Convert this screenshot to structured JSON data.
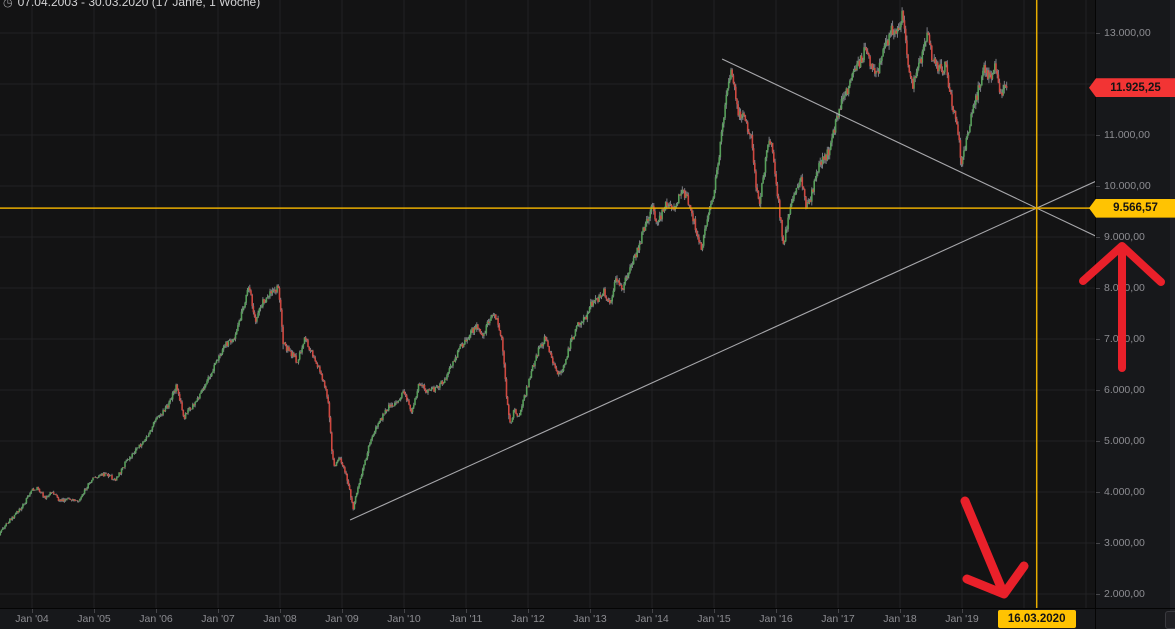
{
  "header": {
    "range_text": "07.04.2003 - 30.03.2020  (17 Jahre, 1 Woche)",
    "clock_icon": "◷"
  },
  "price_scale": {
    "labels": [
      {
        "value": 13000,
        "text": "13.000,00"
      },
      {
        "value": 12000,
        "text": "12.000,00"
      },
      {
        "value": 11000,
        "text": "11.000,00"
      },
      {
        "value": 10000,
        "text": "10.000,00"
      },
      {
        "value": 9000,
        "text": "9.000,00"
      },
      {
        "value": 8000,
        "text": "8.000,00"
      },
      {
        "value": 7000,
        "text": "7.000,00"
      },
      {
        "value": 6000,
        "text": "6.000,00"
      },
      {
        "value": 5000,
        "text": "5.000,00"
      },
      {
        "value": 4000,
        "text": "4.000,00"
      },
      {
        "value": 3000,
        "text": "3.000,00"
      },
      {
        "value": 2000,
        "text": "2.000,00"
      }
    ]
  },
  "time_scale": {
    "labels": [
      {
        "year": 2004,
        "text": "Jan '04"
      },
      {
        "year": 2005,
        "text": "Jan '05"
      },
      {
        "year": 2006,
        "text": "Jan '06"
      },
      {
        "year": 2007,
        "text": "Jan '07"
      },
      {
        "year": 2008,
        "text": "Jan '08"
      },
      {
        "year": 2009,
        "text": "Jan '09"
      },
      {
        "year": 2010,
        "text": "Jan '10"
      },
      {
        "year": 2011,
        "text": "Jan '11"
      },
      {
        "year": 2012,
        "text": "Jan '12"
      },
      {
        "year": 2013,
        "text": "Jan '13"
      },
      {
        "year": 2014,
        "text": "Jan '14"
      },
      {
        "year": 2015,
        "text": "Jan '15"
      },
      {
        "year": 2016,
        "text": "Jan '16"
      },
      {
        "year": 2017,
        "text": "Jan '17"
      },
      {
        "year": 2018,
        "text": "Jan '18"
      },
      {
        "year": 2019,
        "text": "Jan '19"
      }
    ],
    "gridline_years": [
      2004,
      2005,
      2006,
      2007,
      2008,
      2009,
      2010,
      2011,
      2012,
      2013,
      2014,
      2015,
      2016,
      2017,
      2018,
      2019,
      2020,
      2021
    ]
  },
  "last_price": {
    "label": "11.925,25",
    "value": 11925.25
  },
  "crosshair": {
    "price": 9566.57,
    "price_label": "9.566,57",
    "date_label": "16.03.2020",
    "year_frac": 2020.205
  },
  "chart_data": {
    "type": "candlestick",
    "interval": "1 Woche",
    "title": "07.04.2003 - 30.03.2020 (17 Jahre, 1 Woche)",
    "visible_range": {
      "start": "07.04.2003",
      "end": "30.03.2020"
    },
    "ylim": [
      1725,
      13650
    ],
    "xlim_years": [
      2003.45,
      2021.15
    ],
    "grid": true,
    "y_ticks": [
      2000,
      3000,
      4000,
      5000,
      6000,
      7000,
      8000,
      9000,
      10000,
      11000,
      12000,
      13000
    ],
    "last_close": 11925.25,
    "series_keypoints": [
      [
        2003.45,
        3130
      ],
      [
        2003.55,
        3320
      ],
      [
        2003.7,
        3520
      ],
      [
        2003.85,
        3720
      ],
      [
        2004.0,
        4030
      ],
      [
        2004.1,
        4080
      ],
      [
        2004.22,
        3870
      ],
      [
        2004.32,
        4000
      ],
      [
        2004.45,
        3830
      ],
      [
        2004.6,
        3890
      ],
      [
        2004.75,
        3810
      ],
      [
        2004.9,
        4130
      ],
      [
        2005.0,
        4270
      ],
      [
        2005.2,
        4360
      ],
      [
        2005.35,
        4230
      ],
      [
        2005.5,
        4560
      ],
      [
        2005.7,
        4870
      ],
      [
        2005.85,
        5080
      ],
      [
        2006.0,
        5410
      ],
      [
        2006.2,
        5720
      ],
      [
        2006.33,
        6090
      ],
      [
        2006.45,
        5470
      ],
      [
        2006.58,
        5680
      ],
      [
        2006.72,
        5900
      ],
      [
        2006.88,
        6320
      ],
      [
        2007.0,
        6610
      ],
      [
        2007.12,
        6880
      ],
      [
        2007.25,
        7010
      ],
      [
        2007.38,
        7480
      ],
      [
        2007.5,
        8050
      ],
      [
        2007.6,
        7350
      ],
      [
        2007.72,
        7720
      ],
      [
        2007.85,
        7890
      ],
      [
        2007.98,
        8020
      ],
      [
        2008.05,
        6890
      ],
      [
        2008.15,
        6780
      ],
      [
        2008.28,
        6560
      ],
      [
        2008.4,
        7040
      ],
      [
        2008.52,
        6720
      ],
      [
        2008.62,
        6430
      ],
      [
        2008.72,
        6080
      ],
      [
        2008.78,
        5780
      ],
      [
        2008.83,
        4870
      ],
      [
        2008.88,
        4450
      ],
      [
        2008.95,
        4680
      ],
      [
        2009.02,
        4520
      ],
      [
        2009.1,
        4180
      ],
      [
        2009.18,
        3690
      ],
      [
        2009.3,
        4290
      ],
      [
        2009.45,
        4960
      ],
      [
        2009.6,
        5380
      ],
      [
        2009.75,
        5670
      ],
      [
        2009.9,
        5780
      ],
      [
        2010.0,
        5960
      ],
      [
        2010.12,
        5580
      ],
      [
        2010.25,
        6140
      ],
      [
        2010.38,
        5970
      ],
      [
        2010.5,
        6020
      ],
      [
        2010.65,
        6180
      ],
      [
        2010.8,
        6580
      ],
      [
        2010.95,
        6900
      ],
      [
        2011.08,
        7140
      ],
      [
        2011.18,
        7230
      ],
      [
        2011.28,
        7060
      ],
      [
        2011.4,
        7480
      ],
      [
        2011.5,
        7380
      ],
      [
        2011.58,
        7000
      ],
      [
        2011.65,
        5940
      ],
      [
        2011.72,
        5280
      ],
      [
        2011.78,
        5630
      ],
      [
        2011.85,
        5470
      ],
      [
        2011.95,
        5890
      ],
      [
        2012.05,
        6340
      ],
      [
        2012.18,
        6820
      ],
      [
        2012.28,
        7020
      ],
      [
        2012.38,
        6590
      ],
      [
        2012.48,
        6270
      ],
      [
        2012.58,
        6450
      ],
      [
        2012.68,
        6920
      ],
      [
        2012.8,
        7260
      ],
      [
        2012.92,
        7400
      ],
      [
        2013.02,
        7710
      ],
      [
        2013.12,
        7780
      ],
      [
        2013.22,
        7940
      ],
      [
        2013.32,
        7680
      ],
      [
        2013.42,
        8230
      ],
      [
        2013.52,
        7980
      ],
      [
        2013.62,
        8330
      ],
      [
        2013.75,
        8680
      ],
      [
        2013.88,
        9200
      ],
      [
        2014.0,
        9580
      ],
      [
        2014.1,
        9270
      ],
      [
        2014.22,
        9680
      ],
      [
        2014.35,
        9560
      ],
      [
        2014.48,
        9940
      ],
      [
        2014.58,
        9720
      ],
      [
        2014.68,
        9280
      ],
      [
        2014.75,
        8960
      ],
      [
        2014.8,
        8680
      ],
      [
        2014.88,
        9330
      ],
      [
        2015.0,
        9850
      ],
      [
        2015.1,
        10820
      ],
      [
        2015.2,
        11780
      ],
      [
        2015.28,
        12340
      ],
      [
        2015.38,
        11480
      ],
      [
        2015.5,
        11280
      ],
      [
        2015.6,
        10980
      ],
      [
        2015.68,
        9980
      ],
      [
        2015.73,
        9570
      ],
      [
        2015.8,
        10240
      ],
      [
        2015.88,
        10980
      ],
      [
        2015.95,
        10690
      ],
      [
        2016.05,
        9560
      ],
      [
        2016.12,
        8870
      ],
      [
        2016.22,
        9480
      ],
      [
        2016.32,
        9960
      ],
      [
        2016.42,
        10120
      ],
      [
        2016.48,
        9580
      ],
      [
        2016.55,
        9680
      ],
      [
        2016.65,
        10280
      ],
      [
        2016.75,
        10480
      ],
      [
        2016.85,
        10680
      ],
      [
        2016.95,
        11180
      ],
      [
        2017.05,
        11600
      ],
      [
        2017.18,
        11980
      ],
      [
        2017.32,
        12380
      ],
      [
        2017.45,
        12680
      ],
      [
        2017.55,
        12320
      ],
      [
        2017.63,
        12160
      ],
      [
        2017.75,
        12680
      ],
      [
        2017.87,
        13080
      ],
      [
        2017.97,
        12980
      ],
      [
        2018.04,
        13480
      ],
      [
        2018.12,
        12380
      ],
      [
        2018.2,
        11950
      ],
      [
        2018.32,
        12380
      ],
      [
        2018.44,
        12960
      ],
      [
        2018.54,
        12420
      ],
      [
        2018.64,
        12280
      ],
      [
        2018.74,
        12340
      ],
      [
        2018.84,
        11580
      ],
      [
        2018.92,
        11220
      ],
      [
        2018.99,
        10420
      ],
      [
        2019.08,
        10980
      ],
      [
        2019.18,
        11480
      ],
      [
        2019.28,
        11960
      ],
      [
        2019.36,
        12300
      ],
      [
        2019.45,
        12080
      ],
      [
        2019.54,
        12340
      ],
      [
        2019.62,
        11720
      ],
      [
        2019.68,
        11980
      ],
      [
        2019.74,
        11925.25
      ]
    ],
    "trendlines": [
      {
        "name": "ascending-support",
        "p1": [
          2009.13,
          3450
        ],
        "apex": [
          2020.205,
          9566.57
        ],
        "extend_to_year": 2021.15
      },
      {
        "name": "descending-resistance",
        "p1": [
          2015.13,
          12490
        ],
        "apex": [
          2020.205,
          9566.57
        ],
        "extend_to_year": 2021.15
      }
    ]
  },
  "annotations": {
    "up_arrow": {
      "shaft": [
        [
          1122,
          368
        ],
        [
          1122,
          247
        ]
      ],
      "head": [
        [
          1083,
          281
        ],
        [
          1122,
          246
        ],
        [
          1161,
          282
        ]
      ],
      "width": 8
    },
    "down_arrow": {
      "shaft": [
        [
          965,
          501
        ],
        [
          1003,
          592
        ]
      ],
      "head": [
        [
          967,
          579
        ],
        [
          1004,
          594
        ],
        [
          1024,
          566
        ]
      ],
      "width": 9
    }
  },
  "colors": {
    "background": "#131314",
    "grid": "#222224",
    "axis_text": "#8d8d92",
    "candle_up": "#57a05a",
    "candle_down": "#cf4840",
    "wick": "#9b9ea6",
    "trendline": "#b8b8bc",
    "crosshair": "#e7ac00",
    "tag_yellow": "#ffc302",
    "tag_red": "#f23434",
    "arrow_red": "#e9202a"
  }
}
